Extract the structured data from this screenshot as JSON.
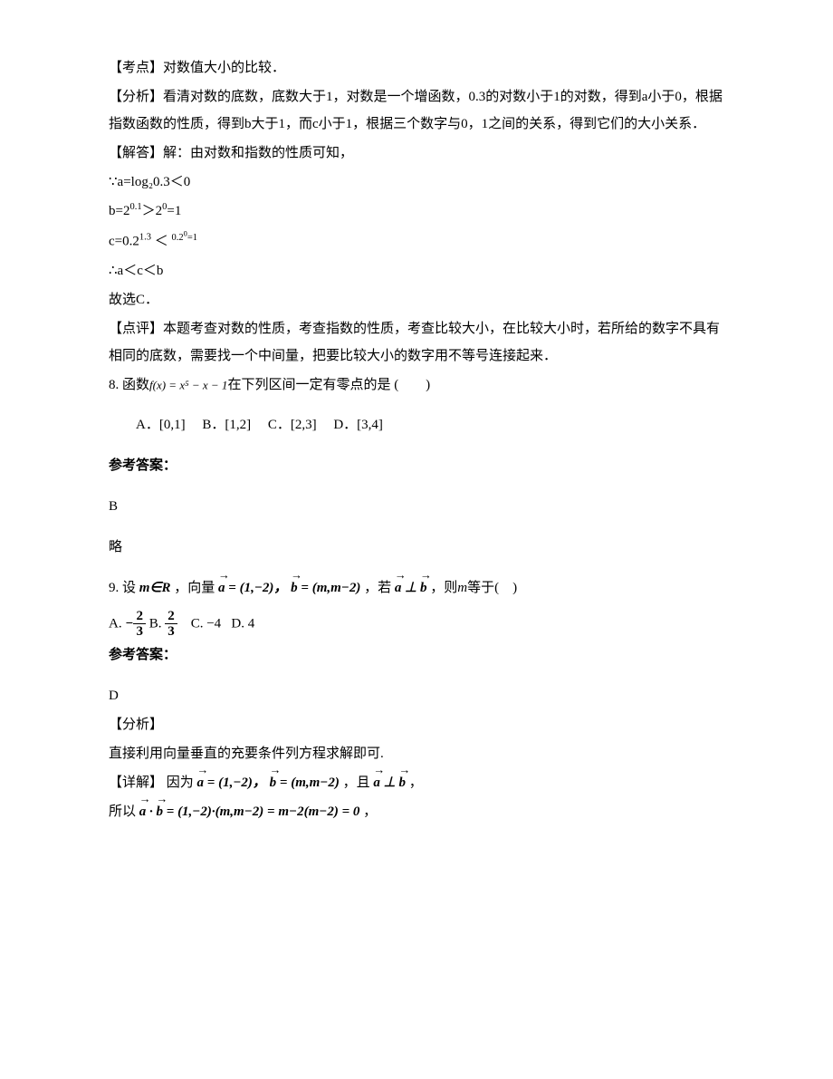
{
  "q7": {
    "kaodian_label": "【考点】",
    "kaodian_text": "对数值大小的比较．",
    "fenxi_label": "【分析】",
    "fenxi_text": "看清对数的底数，底数大于1，对数是一个增函数，0.3的对数小于1的对数，得到a小于0，根据指数函数的性质，得到b大于1，而c小于1，根据三个数字与0，1之间的关系，得到它们的大小关系．",
    "jieda_label": "【解答】",
    "jieda_intro": "解：由对数和指数的性质可知，",
    "line1": "∵a=log₂0.3＜0",
    "line2_pre": "b=2",
    "line2_sup1": "0.1",
    "line2_mid": "＞2",
    "line2_sup2": "0",
    "line2_end": "=1",
    "line3_pre": "c=0.2",
    "line3_sup1": "1.3",
    "line3_mid": " ＜ ",
    "line3_sup2": "0.2",
    "line3_sup2b": "0",
    "line3_sup2c": "=1",
    "line4": "∴a＜c＜b",
    "line5": "故选C．",
    "dianping_label": "【点评】",
    "dianping_text": "本题考查对数的性质，考查指数的性质，考查比较大小，在比较大小时，若所给的数字不具有相同的底数，需要找一个中间量，把要比较大小的数字用不等号连接起来．"
  },
  "q8": {
    "stem_pre": "8. 函数",
    "formula": "f(x) = x⁵ − x − 1",
    "stem_post": "在下列区间一定有零点的是 (　　)",
    "optA": "A．[0,1]",
    "optB": "B．[1,2]",
    "optC": "C．[2,3]",
    "optD": "D．[3,4]",
    "ans_label": "参考答案：",
    "ans": "B",
    "lue": "略"
  },
  "q9": {
    "stem_pre": "9. 设",
    "m_in_R": "m∈R",
    "comma1": "，向量",
    "a_eq": " = (1,−2)，",
    "b_eq": " = (m,m−2)",
    "comma2": "，若",
    "perp": " ⊥ ",
    "comma3": "，则",
    "m_var": "m",
    "stem_end": "等于(　)",
    "optA_pre": "A. ",
    "neg": "−",
    "optB_pre": " B. ",
    "optC": " C. −4",
    "optD": " D. 4",
    "ans_label": "参考答案：",
    "ans": "D",
    "fenxi_label": "【分析】",
    "fenxi_text": "直接利用向量垂直的充要条件列方程求解即可.",
    "xiangjie_label": "【详解】",
    "xiangjie_pre": "因为",
    "a_eq2": " = (1,−2)，",
    "b_eq2": " = (m,m−2)",
    "xiangjie_mid": "，且",
    "xiangjie_end": "，",
    "suoyi": "所以",
    "calc": " · ",
    "calc_eq": " = (1,−2)·(m,m−2) = m−2(m−2) = 0",
    "calc_end": "，"
  },
  "style": {
    "body_bg": "#ffffff",
    "text_color": "#000000",
    "font_size_main": 15,
    "font_size_formula": 13,
    "line_height": 2.0
  }
}
